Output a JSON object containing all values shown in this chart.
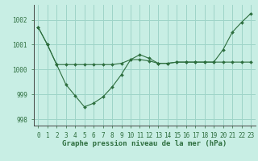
{
  "bg_color": "#c8eee4",
  "grid_color": "#9ed4c8",
  "line_color": "#2d6e3e",
  "marker_color": "#2d6e3e",
  "xlabel": "Graphe pression niveau de la mer (hPa)",
  "xlabel_fontsize": 6.5,
  "tick_fontsize": 5.5,
  "ylim": [
    997.75,
    1002.6
  ],
  "xlim": [
    -0.5,
    23.5
  ],
  "yticks": [
    998,
    999,
    1000,
    1001,
    1002
  ],
  "xticks": [
    0,
    1,
    2,
    3,
    4,
    5,
    6,
    7,
    8,
    9,
    10,
    11,
    12,
    13,
    14,
    15,
    16,
    17,
    18,
    19,
    20,
    21,
    22,
    23
  ],
  "series": [
    {
      "x": [
        0,
        1,
        2,
        3,
        4,
        5,
        6,
        7,
        8,
        9,
        10,
        11,
        12,
        13,
        14,
        15,
        16,
        17,
        18,
        19,
        20,
        21,
        22,
        23
      ],
      "y": [
        1001.7,
        1001.0,
        1000.2,
        1000.2,
        1000.2,
        1000.2,
        1000.2,
        1000.2,
        1000.2,
        1000.25,
        1000.4,
        1000.4,
        1000.35,
        1000.25,
        1000.25,
        1000.3,
        1000.3,
        1000.3,
        1000.3,
        1000.3,
        1000.3,
        1000.3,
        1000.3,
        1000.3
      ]
    },
    {
      "x": [
        0,
        1,
        2,
        3,
        4,
        5,
        6,
        7,
        8,
        9,
        10,
        11,
        12,
        13,
        14,
        15,
        16,
        17,
        18,
        19,
        20,
        21,
        22,
        23
      ],
      "y": [
        1001.7,
        1001.0,
        1000.2,
        999.4,
        998.95,
        998.5,
        998.65,
        998.9,
        999.3,
        999.8,
        1000.4,
        1000.6,
        1000.45,
        1000.25,
        1000.25,
        1000.3,
        1000.3,
        1000.3,
        1000.3,
        1000.3,
        1000.8,
        1001.5,
        1001.9,
        1002.25
      ]
    }
  ]
}
